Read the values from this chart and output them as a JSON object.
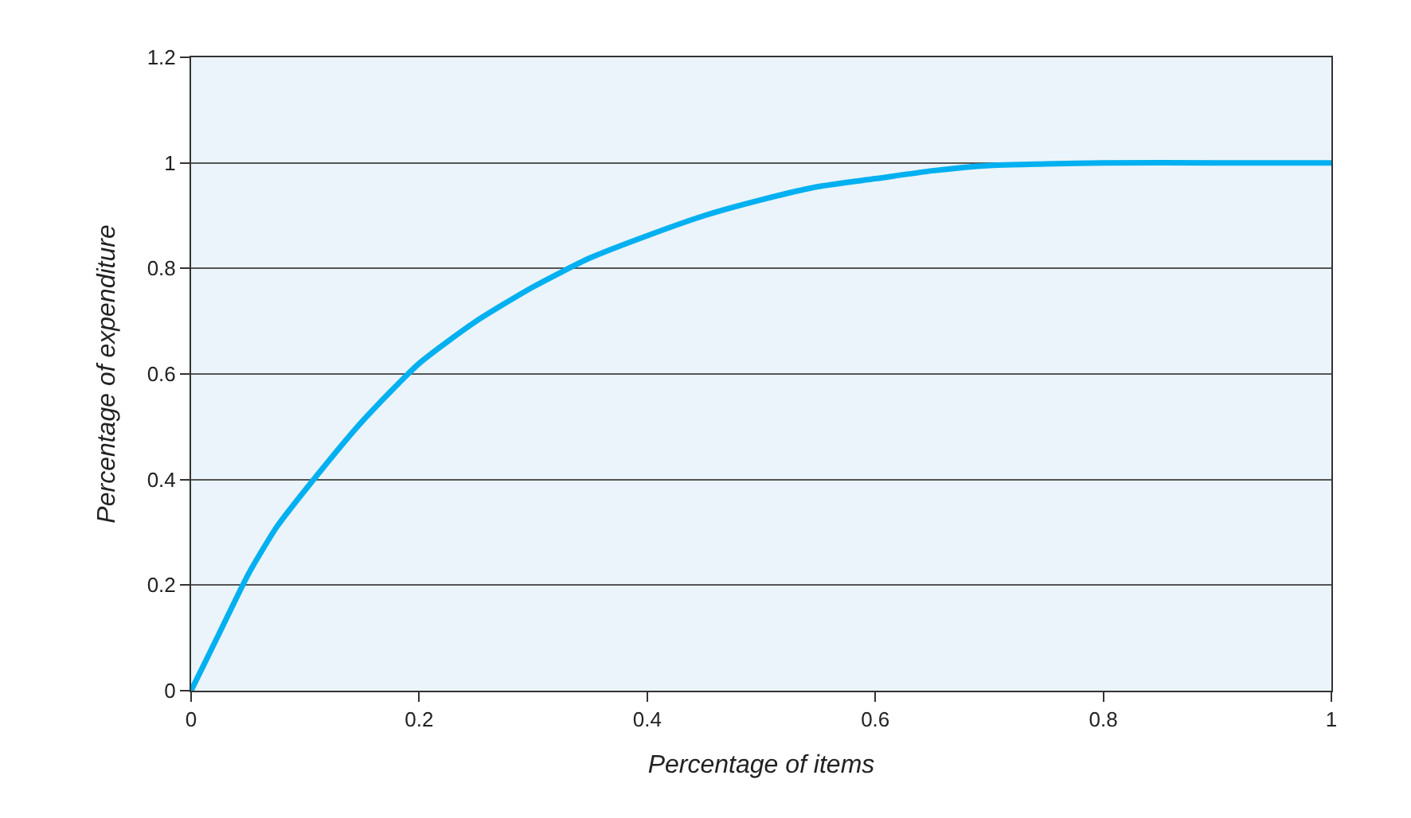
{
  "chart_data": {
    "type": "line",
    "xlabel": "Percentage of items",
    "ylabel": "Percentage of expenditure",
    "x": [
      0,
      0.025,
      0.05,
      0.075,
      0.1,
      0.15,
      0.2,
      0.25,
      0.3,
      0.35,
      0.4,
      0.45,
      0.5,
      0.55,
      0.6,
      0.65,
      0.7,
      0.75,
      0.8,
      0.9,
      1
    ],
    "series": [
      {
        "color": "#00b0f0",
        "values": [
          0,
          0.11,
          0.22,
          0.31,
          0.38,
          0.51,
          0.62,
          0.7,
          0.765,
          0.82,
          0.862,
          0.9,
          0.93,
          0.955,
          0.97,
          0.985,
          0.995,
          0.998,
          1.0,
          1.0,
          1.0
        ]
      }
    ],
    "xlim": [
      0,
      1
    ],
    "xticks": [
      0,
      0.2,
      0.4,
      0.6,
      0.8,
      1
    ],
    "ylim": [
      0,
      1.2
    ],
    "yticks": [
      0,
      0.2,
      0.4,
      0.6,
      0.8,
      1,
      1.2
    ],
    "grid": "y",
    "marker": "none",
    "line_style": "solid"
  }
}
